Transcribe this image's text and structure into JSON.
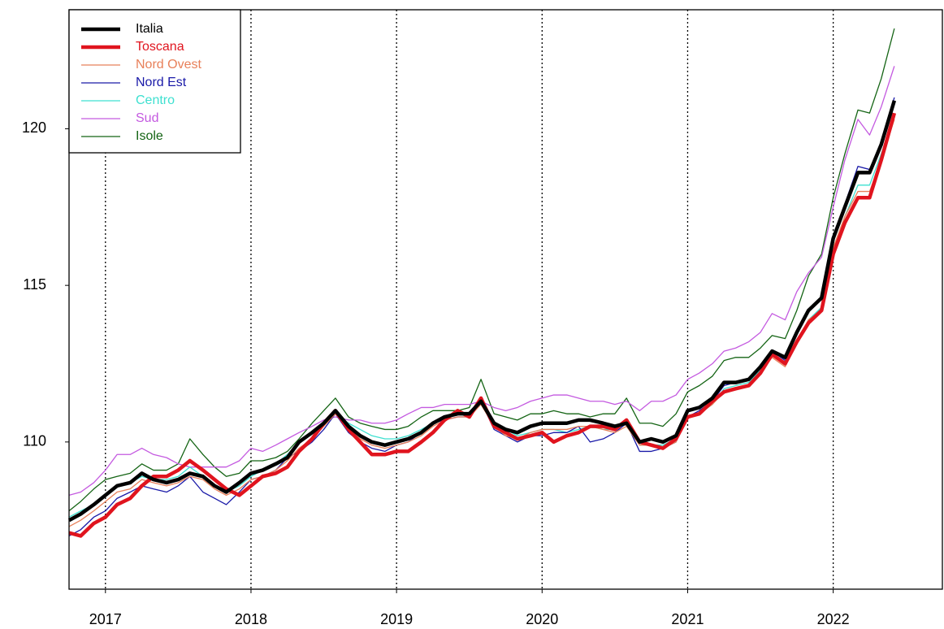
{
  "chart_data": {
    "type": "line",
    "x": [
      2016.75,
      2016.83,
      2016.92,
      2017.0,
      2017.08,
      2017.17,
      2017.25,
      2017.33,
      2017.42,
      2017.5,
      2017.58,
      2017.67,
      2017.75,
      2017.83,
      2017.92,
      2018.0,
      2018.08,
      2018.17,
      2018.25,
      2018.33,
      2018.42,
      2018.5,
      2018.58,
      2018.67,
      2018.75,
      2018.83,
      2018.92,
      2019.0,
      2019.08,
      2019.17,
      2019.25,
      2019.33,
      2019.42,
      2019.5,
      2019.58,
      2019.67,
      2019.75,
      2019.83,
      2019.92,
      2020.0,
      2020.08,
      2020.17,
      2020.25,
      2020.33,
      2020.42,
      2020.5,
      2020.58,
      2020.67,
      2020.75,
      2020.83,
      2020.92,
      2021.0,
      2021.08,
      2021.17,
      2021.25,
      2021.33,
      2021.42,
      2021.5,
      2021.58,
      2021.67,
      2021.75,
      2021.83,
      2021.92,
      2022.0,
      2022.08,
      2022.17,
      2022.25,
      2022.33,
      2022.42
    ],
    "series": [
      {
        "name": "Italia",
        "color": "#000000",
        "width": 4.5,
        "values": [
          107.5,
          107.7,
          108.0,
          108.3,
          108.6,
          108.7,
          109.0,
          108.8,
          108.7,
          108.8,
          109.0,
          108.9,
          108.6,
          108.4,
          108.7,
          109.0,
          109.1,
          109.3,
          109.5,
          110.0,
          110.3,
          110.6,
          111.0,
          110.5,
          110.2,
          110.0,
          109.9,
          110.0,
          110.1,
          110.3,
          110.6,
          110.8,
          110.9,
          110.9,
          111.3,
          110.6,
          110.4,
          110.3,
          110.5,
          110.6,
          110.6,
          110.6,
          110.7,
          110.7,
          110.6,
          110.5,
          110.6,
          110.0,
          110.1,
          110.0,
          110.2,
          111.0,
          111.1,
          111.4,
          111.9,
          111.9,
          112.0,
          112.4,
          112.9,
          112.7,
          113.5,
          114.2,
          114.6,
          116.5,
          117.5,
          118.6,
          118.6,
          119.5,
          120.9
        ]
      },
      {
        "name": "Toscana",
        "color": "#e0141e",
        "width": 4.5,
        "values": [
          107.1,
          107.0,
          107.4,
          107.6,
          108.0,
          108.2,
          108.6,
          108.9,
          108.9,
          109.1,
          109.4,
          109.1,
          108.8,
          108.5,
          108.3,
          108.6,
          108.9,
          109.0,
          109.2,
          109.7,
          110.1,
          110.6,
          111.0,
          110.4,
          110.0,
          109.6,
          109.6,
          109.7,
          109.7,
          110.0,
          110.3,
          110.7,
          111.0,
          110.8,
          111.4,
          110.5,
          110.3,
          110.1,
          110.2,
          110.3,
          110.0,
          110.2,
          110.3,
          110.5,
          110.5,
          110.4,
          110.7,
          110.0,
          109.9,
          109.8,
          110.1,
          110.8,
          110.9,
          111.3,
          111.6,
          111.7,
          111.8,
          112.2,
          112.8,
          112.5,
          113.2,
          113.8,
          114.2,
          116.0,
          117.0,
          117.8,
          117.8,
          119.0,
          120.5
        ]
      },
      {
        "name": "Nord Ovest",
        "color": "#e8805a",
        "width": 1.3,
        "values": [
          107.3,
          107.5,
          107.8,
          108.1,
          108.4,
          108.5,
          108.8,
          108.7,
          108.6,
          108.7,
          108.9,
          108.8,
          108.5,
          108.3,
          108.5,
          108.8,
          108.9,
          109.1,
          109.4,
          109.8,
          110.1,
          110.5,
          110.9,
          110.4,
          110.1,
          109.9,
          109.8,
          109.9,
          110.0,
          110.2,
          110.5,
          110.7,
          110.8,
          110.8,
          111.2,
          110.5,
          110.2,
          110.1,
          110.3,
          110.4,
          110.4,
          110.4,
          110.5,
          110.5,
          110.4,
          110.3,
          110.5,
          109.9,
          109.9,
          109.8,
          110.0,
          110.8,
          110.9,
          111.2,
          111.6,
          111.7,
          111.8,
          112.2,
          112.7,
          112.4,
          113.2,
          113.9,
          114.2,
          116.2,
          117.2,
          118.0,
          118.0,
          119.0,
          120.3
        ]
      },
      {
        "name": "Nord Est",
        "color": "#1a1aa8",
        "width": 1.3,
        "values": [
          107.0,
          107.2,
          107.6,
          107.8,
          108.2,
          108.4,
          108.6,
          108.5,
          108.4,
          108.6,
          108.9,
          108.4,
          108.2,
          108.0,
          108.4,
          108.8,
          108.9,
          109.1,
          109.5,
          109.7,
          110.0,
          110.4,
          110.9,
          110.3,
          110.0,
          109.8,
          109.7,
          109.9,
          110.0,
          110.3,
          110.6,
          110.7,
          110.8,
          110.8,
          111.3,
          110.4,
          110.2,
          110.0,
          110.2,
          110.2,
          110.3,
          110.3,
          110.5,
          110.0,
          110.1,
          110.3,
          110.6,
          109.7,
          109.7,
          109.8,
          110.0,
          110.8,
          111.0,
          111.3,
          111.8,
          111.9,
          112.0,
          112.4,
          112.9,
          112.6,
          113.5,
          114.2,
          114.6,
          116.5,
          117.6,
          118.8,
          118.7,
          119.5,
          121.0
        ]
      },
      {
        "name": "Centro",
        "color": "#3ee0d0",
        "width": 1.3,
        "values": [
          107.6,
          107.8,
          108.0,
          108.3,
          108.6,
          108.7,
          108.9,
          108.8,
          108.8,
          108.9,
          109.2,
          108.9,
          108.6,
          108.4,
          108.6,
          108.9,
          109.1,
          109.3,
          109.6,
          110.0,
          110.3,
          110.6,
          110.9,
          110.6,
          110.4,
          110.2,
          110.1,
          110.1,
          110.2,
          110.4,
          110.6,
          110.8,
          110.9,
          110.8,
          111.3,
          110.6,
          110.4,
          110.2,
          110.3,
          110.4,
          110.4,
          110.3,
          110.4,
          110.5,
          110.4,
          110.4,
          110.6,
          109.9,
          109.9,
          109.9,
          110.1,
          110.8,
          110.9,
          111.2,
          111.7,
          111.8,
          111.9,
          112.3,
          112.8,
          112.5,
          113.2,
          113.9,
          114.3,
          116.1,
          117.2,
          118.2,
          118.2,
          119.2,
          120.4
        ]
      },
      {
        "name": "Sud",
        "color": "#c45ae0",
        "width": 1.3,
        "values": [
          108.3,
          108.4,
          108.7,
          109.1,
          109.6,
          109.6,
          109.8,
          109.6,
          109.5,
          109.3,
          109.2,
          109.2,
          109.2,
          109.2,
          109.4,
          109.8,
          109.7,
          109.9,
          110.1,
          110.3,
          110.5,
          110.7,
          110.8,
          110.7,
          110.7,
          110.6,
          110.6,
          110.7,
          110.9,
          111.1,
          111.1,
          111.2,
          111.2,
          111.2,
          111.3,
          111.1,
          111.0,
          111.1,
          111.3,
          111.4,
          111.5,
          111.5,
          111.4,
          111.3,
          111.3,
          111.2,
          111.3,
          111.0,
          111.3,
          111.3,
          111.5,
          112.0,
          112.2,
          112.5,
          112.9,
          113.0,
          113.2,
          113.5,
          114.1,
          113.9,
          114.8,
          115.4,
          115.9,
          117.5,
          119.0,
          120.3,
          119.8,
          120.7,
          122.0
        ]
      },
      {
        "name": "Isole",
        "color": "#146414",
        "width": 1.3,
        "values": [
          107.8,
          108.1,
          108.5,
          108.8,
          108.9,
          109.0,
          109.3,
          109.1,
          109.1,
          109.3,
          110.1,
          109.6,
          109.2,
          108.9,
          109.0,
          109.4,
          109.4,
          109.5,
          109.7,
          110.1,
          110.6,
          111.0,
          111.4,
          110.8,
          110.6,
          110.5,
          110.4,
          110.4,
          110.5,
          110.8,
          111.0,
          111.0,
          111.0,
          111.1,
          112.0,
          110.9,
          110.8,
          110.7,
          110.9,
          110.9,
          111.0,
          110.9,
          110.9,
          110.8,
          110.9,
          110.9,
          111.4,
          110.6,
          110.6,
          110.5,
          110.9,
          111.6,
          111.8,
          112.1,
          112.6,
          112.7,
          112.7,
          113.0,
          113.4,
          113.3,
          114.2,
          115.3,
          116.0,
          117.8,
          119.2,
          120.6,
          120.5,
          121.6,
          123.2
        ]
      }
    ],
    "xlim": [
      2016.75,
      2022.75
    ],
    "xticks": [
      2017,
      2018,
      2019,
      2020,
      2021,
      2022
    ],
    "ylim": [
      105.3,
      123.8
    ],
    "yticks": [
      110,
      115,
      120
    ],
    "grid": "x",
    "legend": "topleft"
  }
}
